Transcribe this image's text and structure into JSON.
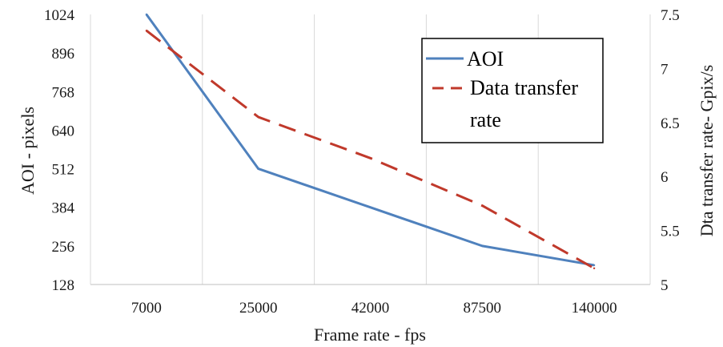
{
  "chart_data": {
    "type": "line",
    "categories": [
      "7000",
      "25000",
      "42000",
      "87500",
      "140000"
    ],
    "series": [
      {
        "name": "AOI",
        "axis": "left",
        "color": "#4f81bd",
        "style": "solid",
        "values": [
          1024,
          512,
          384,
          256,
          192
        ]
      },
      {
        "name": "Data transfer rate",
        "axis": "right",
        "color": "#c0392b",
        "style": "dashed",
        "values": [
          7.35,
          6.55,
          6.17,
          5.73,
          5.15
        ]
      }
    ],
    "xlabel": "Frame rate - fps",
    "ylabel": "AOI - pixels",
    "y2label": "Dta transfer rate- Gpix/s",
    "ylim": [
      128,
      1024
    ],
    "y2lim": [
      5,
      7.5
    ],
    "yticks": [
      "1024",
      "896",
      "768",
      "640",
      "512",
      "384",
      "256",
      "128"
    ],
    "y2ticks": [
      "7.5",
      "7",
      "6.5",
      "6",
      "5.5",
      "5"
    ],
    "legend": {
      "items": [
        "AOI",
        "Data transfer rate"
      ],
      "placement": "top-right",
      "label_line1": "Data transfer",
      "label_line2": "rate"
    },
    "grid": "vertical"
  }
}
